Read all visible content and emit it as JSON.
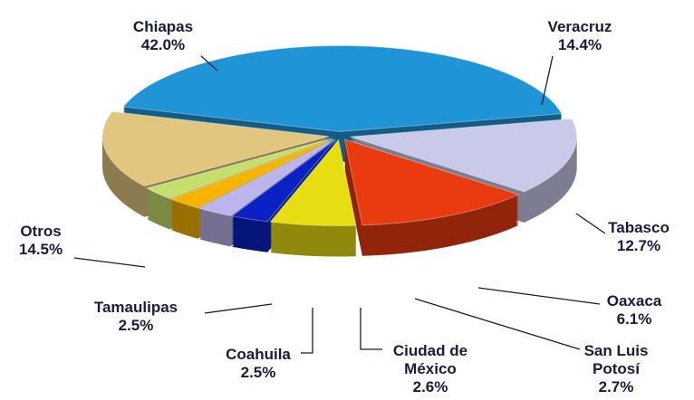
{
  "chart_data": {
    "type": "pie3d",
    "categories": [
      "Veracruz",
      "Tabasco",
      "Oaxaca",
      "San Luis Potosí",
      "Ciudad de México",
      "Coahuila",
      "Tamaulipas",
      "Otros",
      "Chiapas"
    ],
    "values": [
      14.4,
      12.7,
      6.1,
      2.7,
      2.6,
      2.5,
      2.5,
      14.5,
      42.0
    ],
    "value_labels": [
      "14.4%",
      "12.7%",
      "6.1%",
      "2.7%",
      "2.6%",
      "2.5%",
      "2.5%",
      "14.5%",
      "42.0%"
    ],
    "colors": [
      "#c9c9ea",
      "#ea3a10",
      "#e6de12",
      "#0a22c4",
      "#bcb4ec",
      "#f6b400",
      "#c6de6e",
      "#e0c67e",
      "#1f94d6"
    ]
  }
}
